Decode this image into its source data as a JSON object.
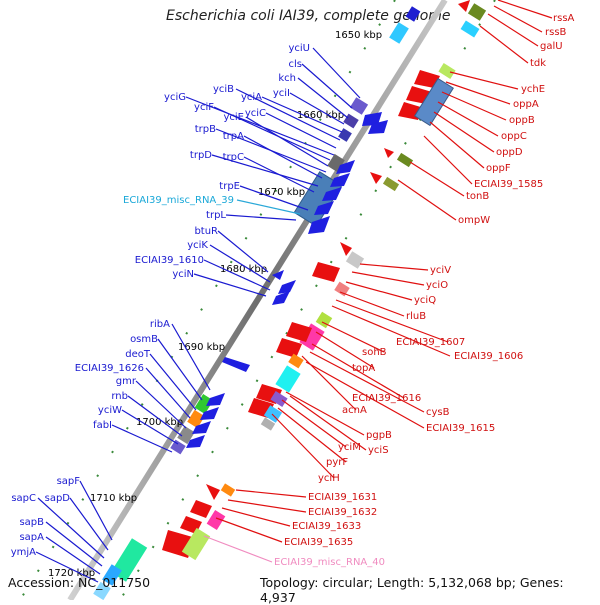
{
  "title": "Escherichia coli IAI39, complete genome",
  "footer": {
    "accession": "Accession: NC_011750",
    "topology": "Topology: circular; Length: 5,132,068 bp; Genes: 4,937"
  },
  "ticks": [
    "1650 kbp",
    "1660 kbp",
    "1670 kbp",
    "1680 kbp",
    "1690 kbp",
    "1700 kbp",
    "1710 kbp",
    "1720 kbp"
  ],
  "left_genes": [
    "yciU",
    "cls",
    "kch",
    "yciI",
    "yciA",
    "yciB",
    "yciC",
    "yciG",
    "yciF",
    "yciE",
    "trpB",
    "trpA",
    "trpD",
    "trpC",
    "trpE",
    "trpL",
    "btuR",
    "yciK",
    "ECIAI39_1610",
    "yciN",
    "ribA",
    "osmB",
    "deoT",
    "ECIAI39_1626",
    "gmr",
    "rnb",
    "yciW",
    "fabI",
    "sapF",
    "sapD",
    "sapC",
    "sapB",
    "sapA",
    "ymjA"
  ],
  "left_rna": "ECIAI39_misc_RNA_39",
  "right_genes": [
    "rssA",
    "rssB",
    "galU",
    "tdk",
    "ychE",
    "oppA",
    "oppB",
    "oppC",
    "oppD",
    "oppF",
    "ECIAI39_1585",
    "tonB",
    "ompW",
    "yciV",
    "yciO",
    "yciQ",
    "rluB",
    "ECIAI39_1607",
    "ECIAI39_1606",
    "sohB",
    "topA",
    "ECIAI39_1616",
    "acnA",
    "cysB",
    "ECIAI39_1615",
    "pgpB",
    "yciM",
    "yciS",
    "pyrF",
    "yciH",
    "ECIAI39_1631",
    "ECIAI39_1632",
    "ECIAI39_1633",
    "ECIAI39_1635"
  ],
  "right_rna": "ECIAI39_misc_RNA_40",
  "colors": {
    "forward_gene": "#1f1fe0",
    "reverse_gene": "#e81010",
    "rna_left": "#1aa8d8",
    "rna_right": "#f08cc0",
    "backbone": "#808080",
    "tick": "#2a8a2a"
  }
}
